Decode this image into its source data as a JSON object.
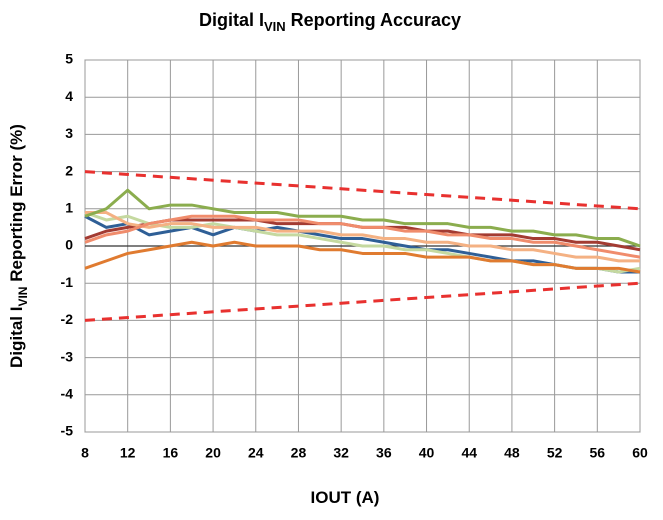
{
  "chart_data": {
    "type": "line",
    "title": [
      "Digital I",
      "VIN",
      " Reporting Accuracy"
    ],
    "ylabel": [
      "Digital I",
      "VIN",
      " Reporting Error (%)"
    ],
    "xlabel": "IOUT (A)",
    "x": [
      8,
      10,
      12,
      14,
      16,
      18,
      20,
      22,
      24,
      26,
      28,
      30,
      32,
      34,
      36,
      38,
      40,
      42,
      44,
      46,
      48,
      50,
      52,
      54,
      56,
      58,
      60
    ],
    "xlim": [
      8,
      60
    ],
    "xticks": [
      8,
      12,
      16,
      20,
      24,
      28,
      32,
      36,
      40,
      44,
      48,
      52,
      56,
      60
    ],
    "ylim": [
      -5,
      5
    ],
    "yticks": [
      -5,
      -4,
      -3,
      -2,
      -1,
      0,
      1,
      2,
      3,
      4,
      5
    ],
    "grid": true,
    "series": [
      {
        "color": "#2f5f96",
        "values": [
          0.8,
          0.5,
          0.6,
          0.3,
          0.4,
          0.5,
          0.3,
          0.5,
          0.4,
          0.5,
          0.4,
          0.3,
          0.2,
          0.2,
          0.1,
          0.0,
          -0.1,
          -0.1,
          -0.2,
          -0.3,
          -0.4,
          -0.4,
          -0.5,
          -0.6,
          -0.6,
          -0.7,
          -0.7
        ]
      },
      {
        "color": "#a33b32",
        "values": [
          0.2,
          0.4,
          0.5,
          0.6,
          0.7,
          0.7,
          0.7,
          0.7,
          0.7,
          0.6,
          0.6,
          0.6,
          0.6,
          0.5,
          0.5,
          0.5,
          0.4,
          0.4,
          0.3,
          0.3,
          0.3,
          0.2,
          0.2,
          0.1,
          0.1,
          0.0,
          -0.1
        ]
      },
      {
        "color": "#c5d9a0",
        "values": [
          0.9,
          0.7,
          0.8,
          0.6,
          0.5,
          0.5,
          0.6,
          0.5,
          0.4,
          0.3,
          0.3,
          0.2,
          0.1,
          0.0,
          0.0,
          -0.1,
          -0.1,
          -0.2,
          -0.3,
          -0.4,
          -0.4,
          -0.5,
          -0.5,
          -0.6,
          -0.6,
          -0.7,
          -0.6
        ]
      },
      {
        "color": "#f4b183",
        "values": [
          0.9,
          0.9,
          0.6,
          0.5,
          0.6,
          0.6,
          0.5,
          0.5,
          0.5,
          0.4,
          0.4,
          0.4,
          0.3,
          0.3,
          0.2,
          0.2,
          0.1,
          0.1,
          0.0,
          0.0,
          -0.1,
          -0.1,
          -0.2,
          -0.3,
          -0.3,
          -0.4,
          -0.4
        ]
      },
      {
        "color": "#f08c6c",
        "values": [
          0.1,
          0.3,
          0.4,
          0.6,
          0.7,
          0.8,
          0.8,
          0.8,
          0.7,
          0.7,
          0.7,
          0.6,
          0.6,
          0.5,
          0.5,
          0.4,
          0.4,
          0.3,
          0.3,
          0.2,
          0.2,
          0.1,
          0.1,
          0.0,
          -0.1,
          -0.2,
          -0.3
        ]
      },
      {
        "color": "#e07b30",
        "values": [
          -0.6,
          -0.4,
          -0.2,
          -0.1,
          0.0,
          0.1,
          0.0,
          0.1,
          0.0,
          0.0,
          0.0,
          -0.1,
          -0.1,
          -0.2,
          -0.2,
          -0.2,
          -0.3,
          -0.3,
          -0.3,
          -0.4,
          -0.4,
          -0.5,
          -0.5,
          -0.6,
          -0.6,
          -0.6,
          -0.7
        ]
      },
      {
        "color": "#8bad4e",
        "values": [
          0.8,
          1.0,
          1.5,
          1.0,
          1.1,
          1.1,
          1.0,
          0.9,
          0.9,
          0.9,
          0.8,
          0.8,
          0.8,
          0.7,
          0.7,
          0.6,
          0.6,
          0.6,
          0.5,
          0.5,
          0.4,
          0.4,
          0.3,
          0.3,
          0.2,
          0.2,
          0.0
        ]
      }
    ],
    "limit_lines": [
      {
        "color": "#e8312f",
        "x": [
          8,
          60
        ],
        "values": [
          2,
          1
        ]
      },
      {
        "color": "#e8312f",
        "x": [
          8,
          60
        ],
        "values": [
          -2,
          -1
        ]
      }
    ]
  }
}
